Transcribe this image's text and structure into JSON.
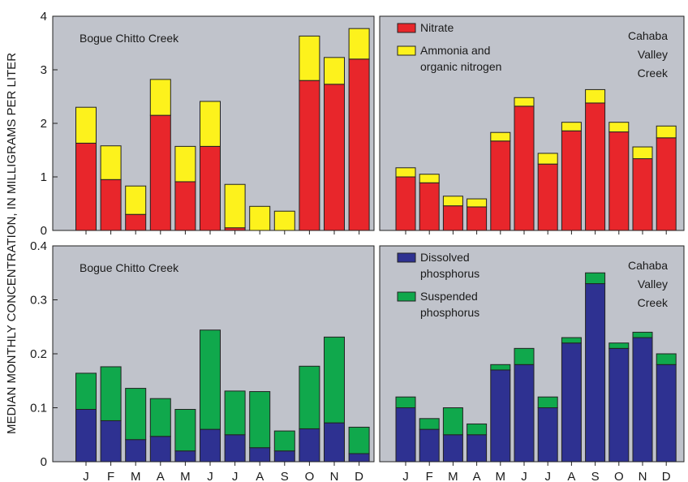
{
  "figure": {
    "ylabel": "MEDIAN MONTHLY CONCENTRATION, IN MILLIGRAMS PER LITER"
  },
  "colors": {
    "panel_bg": "#c0c3cb",
    "nitrate": "#e8262b",
    "ammonia": "#fdf21c",
    "dissolved": "#2e3191",
    "suspended": "#10a84c",
    "stroke": "#222222"
  },
  "chart_data": [
    {
      "type": "bar",
      "stacked": true,
      "panel": "top-left",
      "site_label": "Bogue Chitto Creek",
      "categories": [
        "J",
        "F",
        "M",
        "A",
        "M",
        "J",
        "J",
        "A",
        "S",
        "O",
        "N",
        "D"
      ],
      "ylim": [
        0,
        4
      ],
      "yticks": [
        "0",
        "1",
        "2",
        "3",
        "4"
      ],
      "grid": false,
      "legend": "none",
      "series": [
        {
          "name": "Nitrate",
          "color": "nitrate",
          "values": [
            1.63,
            0.95,
            0.3,
            2.15,
            0.91,
            1.57,
            0.05,
            0,
            0,
            2.8,
            2.73,
            3.2
          ]
        },
        {
          "name": "Ammonia and organic nitrogen",
          "color": "ammonia",
          "values": [
            0.67,
            0.63,
            0.53,
            0.67,
            0.66,
            0.84,
            0.81,
            0.45,
            0.36,
            0.83,
            0.5,
            0.57
          ]
        }
      ]
    },
    {
      "type": "bar",
      "stacked": true,
      "panel": "top-right",
      "site_label": "Cahaba\nValley\nCreek",
      "categories": [
        "J",
        "F",
        "M",
        "A",
        "M",
        "J",
        "J",
        "A",
        "S",
        "O",
        "N",
        "D"
      ],
      "ylim": [
        0,
        4
      ],
      "grid": false,
      "legend": "top-left",
      "legend_items": [
        "Nitrate",
        "Ammonia and\norganic nitrogen"
      ],
      "series": [
        {
          "name": "Nitrate",
          "color": "nitrate",
          "values": [
            1.0,
            0.89,
            0.46,
            0.44,
            1.67,
            2.32,
            1.24,
            1.86,
            2.38,
            1.84,
            1.34,
            1.73
          ]
        },
        {
          "name": "Ammonia and organic nitrogen",
          "color": "ammonia",
          "values": [
            0.17,
            0.16,
            0.18,
            0.15,
            0.16,
            0.16,
            0.2,
            0.16,
            0.25,
            0.18,
            0.22,
            0.22
          ]
        }
      ]
    },
    {
      "type": "bar",
      "stacked": true,
      "panel": "bottom-left",
      "site_label": "Bogue Chitto Creek",
      "categories": [
        "J",
        "F",
        "M",
        "A",
        "M",
        "J",
        "J",
        "A",
        "S",
        "O",
        "N",
        "D"
      ],
      "ylim": [
        0,
        0.4
      ],
      "yticks": [
        "0",
        "0.1",
        "0.2",
        "0.3",
        "0.4"
      ],
      "grid": false,
      "legend": "none",
      "series": [
        {
          "name": "Dissolved phosphorus",
          "color": "dissolved",
          "values": [
            0.097,
            0.076,
            0.041,
            0.047,
            0.02,
            0.06,
            0.05,
            0.026,
            0.02,
            0.061,
            0.072,
            0.015
          ]
        },
        {
          "name": "Suspended phosphorus",
          "color": "suspended",
          "values": [
            0.067,
            0.1,
            0.095,
            0.07,
            0.077,
            0.184,
            0.081,
            0.104,
            0.037,
            0.116,
            0.159,
            0.049
          ]
        }
      ]
    },
    {
      "type": "bar",
      "stacked": true,
      "panel": "bottom-right",
      "site_label": "Cahaba\nValley\nCreek",
      "categories": [
        "J",
        "F",
        "M",
        "A",
        "M",
        "J",
        "J",
        "A",
        "S",
        "O",
        "N",
        "D"
      ],
      "ylim": [
        0,
        0.4
      ],
      "grid": false,
      "legend": "top-left",
      "legend_items": [
        "Dissolved\nphosphorus",
        "Suspended\nphosphorus"
      ],
      "series": [
        {
          "name": "Dissolved phosphorus",
          "color": "dissolved",
          "values": [
            0.1,
            0.06,
            0.05,
            0.05,
            0.17,
            0.18,
            0.1,
            0.22,
            0.33,
            0.21,
            0.23,
            0.18
          ]
        },
        {
          "name": "Suspended phosphorus",
          "color": "suspended",
          "values": [
            0.02,
            0.02,
            0.05,
            0.02,
            0.01,
            0.03,
            0.02,
            0.01,
            0.02,
            0.01,
            0.01,
            0.02
          ]
        }
      ]
    }
  ]
}
